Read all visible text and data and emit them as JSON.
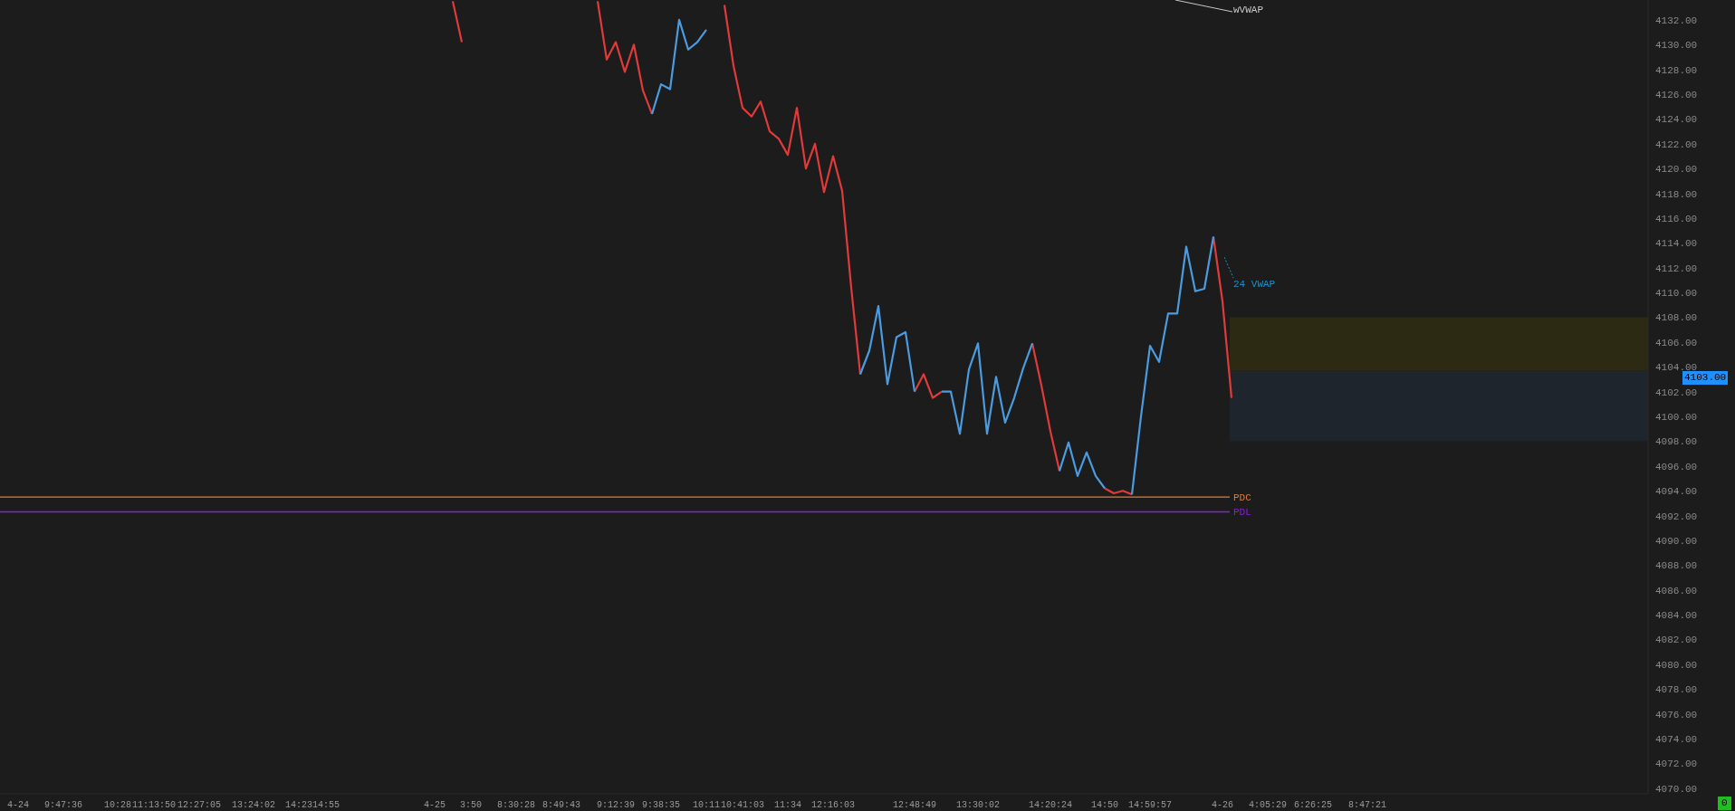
{
  "chart_data": {
    "type": "line",
    "categories": [
      null,
      null,
      "4-24",
      null,
      null,
      null,
      null,
      "9:47:36",
      null,
      null,
      null,
      null,
      null,
      "10:28",
      null,
      null,
      null,
      "11:13:50",
      null,
      null,
      null,
      null,
      "12:27:05",
      null,
      null,
      null,
      null,
      null,
      "13:24:02",
      null,
      null,
      null,
      null,
      "14:23",
      null,
      null,
      "14:55",
      null,
      null,
      null,
      null,
      null,
      null,
      null,
      null,
      null,
      null,
      null,
      "4-25",
      null,
      null,
      null,
      "3:50",
      null,
      null,
      null,
      null,
      "8:30:28",
      null,
      null,
      null,
      null,
      "8:49:43",
      null,
      null,
      null,
      null,
      null,
      "9:12:39",
      null,
      null,
      null,
      null,
      "9:38:35",
      null,
      null,
      null,
      null,
      "10:11",
      null,
      null,
      null,
      "10:41:03",
      null,
      null,
      null,
      null,
      "11:34",
      null,
      null,
      null,
      null,
      "12:16:03",
      null,
      null,
      null,
      null,
      null,
      null,
      null,
      null,
      "12:48:49",
      null,
      null,
      null,
      null,
      null,
      null,
      "13:30:02",
      null,
      null,
      null,
      null,
      null,
      null,
      null,
      "14:20:24",
      null,
      null,
      null,
      null,
      null,
      "14:50",
      null,
      null,
      null,
      null,
      "14:59:57",
      null,
      null,
      null,
      null,
      null,
      null,
      null,
      "4-26",
      null,
      null,
      null,
      null,
      "4:05:29",
      null,
      null,
      null,
      null,
      "6:26:25",
      null,
      null,
      null,
      null,
      null,
      "8:47:21",
      null,
      null,
      null,
      null,
      null,
      null,
      null,
      null,
      null,
      null,
      null,
      null,
      null,
      null,
      null,
      null,
      null,
      null,
      null,
      null,
      null,
      null,
      null,
      null,
      null,
      null,
      null,
      null,
      null,
      null,
      null
    ],
    "series": [
      {
        "type": "line",
        "color": "#e03a3a",
        "values": [
          null,
          null,
          null,
          null,
          null,
          null,
          null,
          null,
          null,
          null,
          null,
          null,
          null,
          null,
          null,
          null,
          null,
          null,
          null,
          null,
          null,
          null,
          null,
          null,
          null,
          null,
          null,
          null,
          null,
          null,
          null,
          null,
          null,
          null,
          null,
          null,
          null,
          null,
          null,
          null,
          null,
          null,
          null,
          null,
          null,
          null,
          null,
          null,
          null,
          null,
          4133.5,
          4130.2,
          null,
          null,
          null,
          null,
          null,
          null,
          null,
          null,
          null,
          null,
          null,
          null,
          null,
          null,
          4133.5,
          4128.8,
          4130.2,
          4127.8,
          4130.0,
          4126.3,
          4124.4,
          null,
          null,
          null,
          null,
          null,
          null,
          null,
          4133.2,
          4128.3,
          4124.9,
          4124.2,
          4125.4,
          4123.0,
          4122.4,
          4121.1,
          4124.9,
          4120.0,
          4122.0,
          4118.1,
          4121.0,
          4118.2,
          4110.4,
          4103.4,
          null,
          null,
          null,
          null,
          null,
          4102.0,
          4103.4,
          4101.5,
          4102.0,
          null,
          null,
          null,
          null,
          null,
          null,
          null,
          null,
          null,
          4105.9,
          4102.5,
          4098.8,
          4095.6,
          null,
          null,
          null,
          null,
          4094.2,
          4093.8,
          4094.0,
          4093.7,
          null,
          null,
          null,
          null,
          null,
          null,
          null,
          null,
          4114.5,
          4109.3,
          4101.5,
          null,
          null,
          null,
          null,
          null,
          null,
          null,
          null,
          null,
          null,
          null,
          null,
          null,
          null,
          null,
          null,
          null,
          null,
          null,
          null,
          null,
          null,
          null,
          null,
          null,
          null,
          null,
          null,
          null,
          null,
          null,
          null,
          null,
          null,
          null,
          null,
          null,
          null,
          null,
          null,
          null,
          null,
          null,
          null,
          null,
          null
        ]
      },
      {
        "type": "line",
        "color": "#4a9be0",
        "values": [
          null,
          null,
          null,
          null,
          null,
          null,
          null,
          null,
          null,
          null,
          null,
          null,
          null,
          null,
          null,
          null,
          null,
          null,
          null,
          null,
          null,
          null,
          null,
          null,
          null,
          null,
          null,
          null,
          null,
          null,
          null,
          null,
          null,
          null,
          null,
          null,
          null,
          null,
          null,
          null,
          null,
          null,
          null,
          null,
          null,
          null,
          null,
          null,
          null,
          null,
          null,
          null,
          null,
          null,
          null,
          null,
          null,
          null,
          null,
          null,
          null,
          null,
          null,
          null,
          null,
          null,
          null,
          null,
          null,
          null,
          null,
          null,
          4124.4,
          4126.8,
          4126.4,
          4132.0,
          4129.6,
          4130.2,
          4131.2,
          null,
          null,
          null,
          null,
          null,
          null,
          null,
          null,
          null,
          null,
          null,
          null,
          null,
          null,
          null,
          null,
          4103.4,
          4105.3,
          4108.9,
          4102.6,
          4106.4,
          4106.8,
          4102.0,
          null,
          null,
          4102.0,
          4102.0,
          4098.6,
          4103.8,
          4105.9,
          4098.6,
          4103.2,
          4099.5,
          4101.5,
          4103.9,
          4105.9,
          null,
          null,
          4095.6,
          4097.9,
          4095.2,
          4097.1,
          4095.2,
          4094.2,
          null,
          null,
          4093.7,
          4100.0,
          4105.7,
          4104.4,
          4108.3,
          4108.3,
          4113.7,
          4110.1,
          4110.3,
          4114.5,
          null,
          null,
          null,
          null,
          null,
          null,
          null,
          null,
          null,
          null,
          null,
          null,
          null,
          null,
          null,
          null,
          null,
          null,
          null,
          null,
          null,
          null,
          null,
          null,
          null,
          null,
          null,
          null,
          null,
          null,
          null,
          null,
          null,
          null,
          null,
          null,
          null,
          null,
          null,
          null,
          null,
          null,
          null,
          null,
          null,
          null,
          null,
          null
        ]
      }
    ],
    "ylim": [
      4069.55,
      4133.6
    ],
    "yticks": [
      {
        "value": 4070,
        "label": "4070.00"
      },
      {
        "value": 4072,
        "label": "4072.00"
      },
      {
        "value": 4074,
        "label": "4074.00"
      },
      {
        "value": 4076,
        "label": "4076.00"
      },
      {
        "value": 4078,
        "label": "4078.00"
      },
      {
        "value": 4080,
        "label": "4080.00"
      },
      {
        "value": 4082,
        "label": "4082.00"
      },
      {
        "value": 4084,
        "label": "4084.00"
      },
      {
        "value": 4086,
        "label": "4086.00"
      },
      {
        "value": 4088,
        "label": "4088.00"
      },
      {
        "value": 4090,
        "label": "4090.00"
      },
      {
        "value": 4092,
        "label": "4092.00"
      },
      {
        "value": 4094,
        "label": "4094.00"
      },
      {
        "value": 4096,
        "label": "4096.00"
      },
      {
        "value": 4098,
        "label": "4098.00"
      },
      {
        "value": 4100,
        "label": "4100.00"
      },
      {
        "value": 4102,
        "label": "4102.00"
      },
      {
        "value": 4104,
        "label": "4104.00"
      },
      {
        "value": 4106,
        "label": "4106.00"
      },
      {
        "value": 4108,
        "label": "4108.00"
      },
      {
        "value": 4110,
        "label": "4110.00"
      },
      {
        "value": 4112,
        "label": "4112.00"
      },
      {
        "value": 4114,
        "label": "4114.00"
      },
      {
        "value": 4116,
        "label": "4116.00"
      },
      {
        "value": 4118,
        "label": "4118.00"
      },
      {
        "value": 4120,
        "label": "4120.00"
      },
      {
        "value": 4122,
        "label": "4122.00"
      },
      {
        "value": 4124,
        "label": "4124.00"
      },
      {
        "value": 4126,
        "label": "4126.00"
      },
      {
        "value": 4128,
        "label": "4128.00"
      },
      {
        "value": 4130,
        "label": "4130.00"
      },
      {
        "value": 4132,
        "label": "4132.00"
      }
    ],
    "ref_lines": [
      {
        "axis": "y",
        "value": 4093.5,
        "label": "PDC",
        "color": "#e07b39"
      },
      {
        "axis": "y",
        "value": 4092.3,
        "label": "PDL",
        "color": "#8b1ce8"
      }
    ],
    "bands": [
      {
        "axis": "y",
        "from": 4103.7,
        "to": 4108.0,
        "color": "#2c2a12"
      },
      {
        "axis": "y",
        "from": 4098.0,
        "to": 4103.7,
        "color": "#1e252d"
      }
    ],
    "annotations": [
      "wVWAP",
      "24 VWAP",
      "4103.00",
      "0"
    ],
    "line_style": "solid"
  }
}
